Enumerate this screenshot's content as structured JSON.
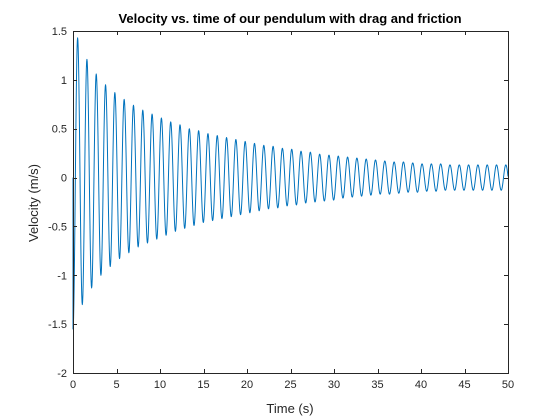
{
  "chart_data": {
    "type": "line",
    "title": "Velocity vs. time of our pendulum with drag and friction",
    "xlabel": "Time (s)",
    "ylabel": "Velocity (m/s)",
    "xlim": [
      0,
      50
    ],
    "ylim": [
      -2,
      1.5
    ],
    "xticks": [
      0,
      5,
      10,
      15,
      20,
      25,
      30,
      35,
      40,
      45,
      50
    ],
    "xtick_labels": [
      "0",
      "5",
      "10",
      "15",
      "20",
      "25",
      "30",
      "35",
      "40",
      "45",
      "50"
    ],
    "yticks": [
      -2,
      -1.5,
      -1,
      -0.5,
      0,
      0.5,
      1,
      1.5
    ],
    "ytick_labels": [
      "-2",
      "-1.5",
      "-1",
      "-0.5",
      "0",
      "0.5",
      "1",
      "1.5"
    ],
    "grid": false,
    "box": true,
    "colors": {
      "series": "#0072BD",
      "axes": "#262626",
      "background": "#ffffff"
    },
    "series": [
      {
        "x": [
          0,
          0.53,
          1.07,
          1.6,
          2.14,
          2.67,
          3.21,
          3.74,
          4.28,
          4.81,
          5.35,
          5.88,
          6.42,
          6.95,
          7.49,
          8.02,
          8.56,
          9.09,
          9.63,
          10.16,
          10.7,
          11.23,
          11.77,
          12.3,
          12.84,
          13.37,
          13.91,
          14.44,
          14.98,
          15.51,
          16.05,
          16.58,
          17.12,
          17.65,
          18.19,
          18.72,
          19.26,
          19.79,
          20.33,
          20.86,
          21.4,
          21.93,
          22.47,
          23.0,
          23.54,
          24.07,
          24.61,
          25.14,
          25.68,
          26.21,
          26.75,
          27.28,
          27.82,
          28.35,
          28.89,
          29.42,
          29.96,
          30.49,
          31.03,
          31.56,
          32.1,
          32.63,
          33.17,
          33.7,
          34.24,
          34.77,
          35.31,
          35.84,
          36.38,
          36.91,
          37.45,
          37.98,
          38.52,
          39.05,
          39.59,
          40.12,
          40.66,
          41.19,
          41.73,
          42.26,
          42.8,
          43.33,
          43.87,
          44.4,
          44.94,
          45.47,
          46.01,
          46.54,
          47.08,
          47.61,
          48.15,
          48.68,
          49.22,
          49.75
        ],
        "values": [
          -1.55,
          1.43,
          -1.3,
          1.21,
          -1.13,
          1.06,
          -1.0,
          0.95,
          -0.91,
          0.87,
          -0.83,
          0.8,
          -0.77,
          0.74,
          -0.71,
          0.69,
          -0.67,
          0.65,
          -0.63,
          0.61,
          -0.59,
          0.57,
          -0.55,
          0.54,
          -0.52,
          0.5,
          -0.49,
          0.48,
          -0.46,
          0.45,
          -0.44,
          0.43,
          -0.42,
          0.41,
          -0.4,
          0.39,
          -0.38,
          0.37,
          -0.36,
          0.35,
          -0.34,
          0.33,
          -0.32,
          0.32,
          -0.31,
          0.3,
          -0.29,
          0.29,
          -0.28,
          0.27,
          -0.26,
          0.26,
          -0.25,
          0.24,
          -0.24,
          0.23,
          -0.23,
          0.22,
          -0.21,
          0.21,
          -0.2,
          0.2,
          -0.19,
          0.19,
          -0.18,
          0.18,
          -0.17,
          0.17,
          -0.17,
          0.16,
          -0.16,
          0.16,
          -0.15,
          0.15,
          -0.15,
          0.14,
          -0.14,
          0.14,
          -0.14,
          0.14,
          -0.13,
          0.13,
          -0.13,
          0.13,
          -0.13,
          0.13,
          -0.13,
          0.13,
          -0.13,
          0.13,
          -0.13,
          0.13,
          -0.13,
          0.13
        ]
      }
    ]
  }
}
